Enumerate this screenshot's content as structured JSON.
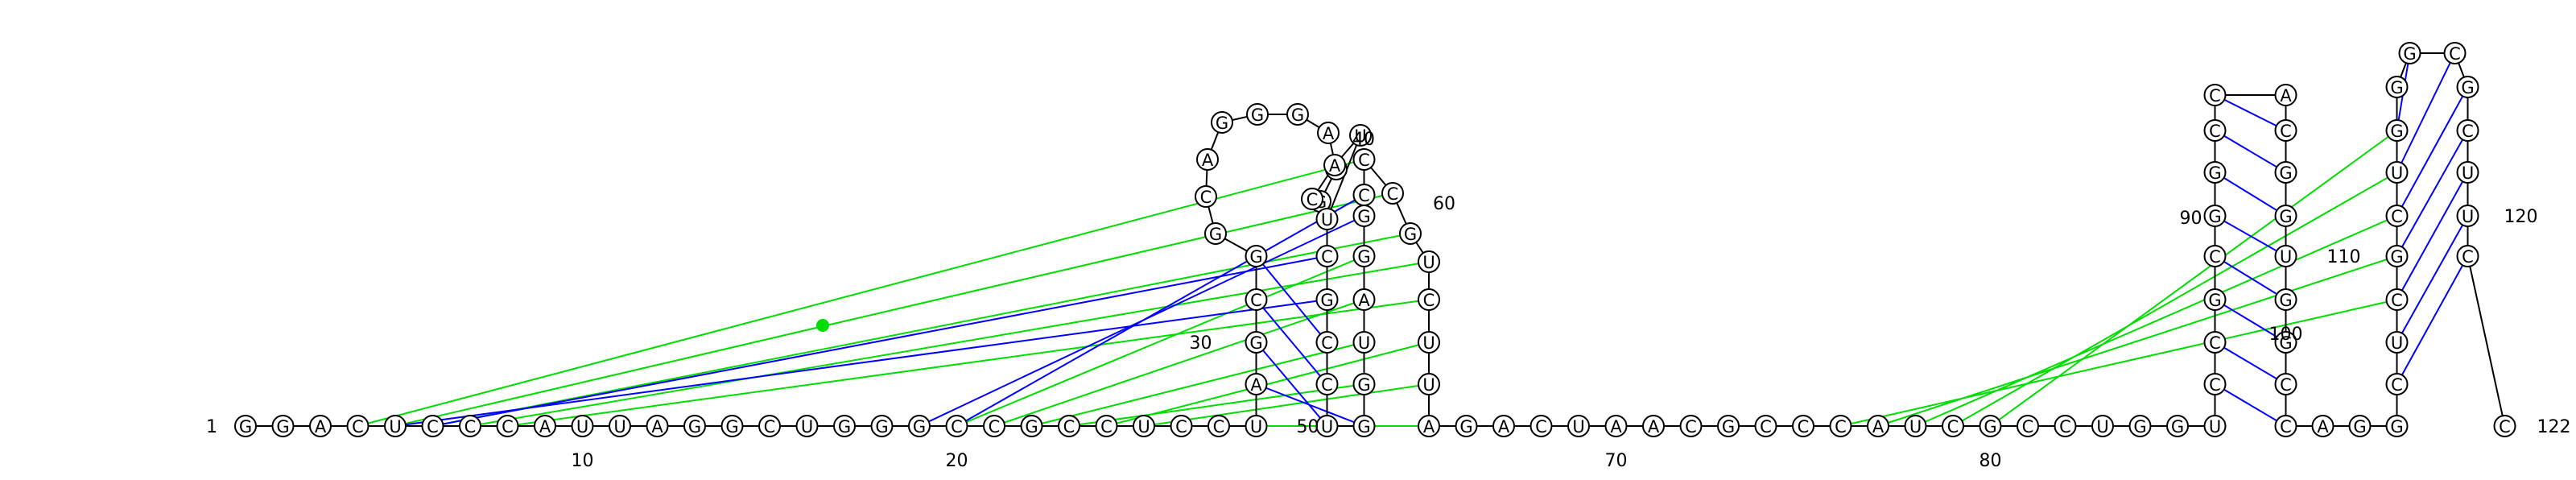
{
  "sequence": "GGACUCCCAUUAGGCUGGGCCGCCUCCUAGCGGCAGGGAGGCAUUCGCCUGGUAGGCCCGUCUUAGACUAACGCCCAUCGCCUGGUCCGCGGCCACGGUGGCCAGGCUCGCUGGGCGCUUCC",
  "numbering_labels": [
    {
      "n": 1,
      "text": "1"
    },
    {
      "n": 10,
      "text": "10"
    },
    {
      "n": 20,
      "text": "20"
    },
    {
      "n": 30,
      "text": "30"
    },
    {
      "n": 40,
      "text": "40"
    },
    {
      "n": 50,
      "text": "50"
    },
    {
      "n": 60,
      "text": "60"
    },
    {
      "n": 70,
      "text": "70"
    },
    {
      "n": 80,
      "text": "80"
    },
    {
      "n": 90,
      "text": "90"
    },
    {
      "n": 100,
      "text": "100"
    },
    {
      "n": 110,
      "text": "110"
    },
    {
      "n": 120,
      "text": "120"
    },
    {
      "n": 122,
      "text": "122"
    }
  ],
  "colors": {
    "backbone": "#000000",
    "canonical_pair": "#0000ff",
    "predicted_pair": "#00dd00",
    "gu_marker": "#0000ff"
  }
}
